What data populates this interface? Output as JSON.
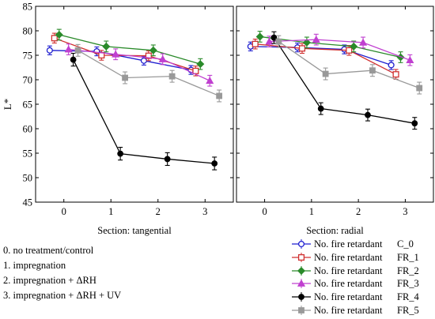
{
  "chart_data": {
    "type": "line",
    "ylabel": "L*",
    "ylim": [
      45,
      85
    ],
    "yticks": [
      45,
      50,
      55,
      60,
      65,
      70,
      75,
      80,
      85
    ],
    "x_ticks": [
      "0",
      "1",
      "2",
      "3"
    ],
    "xlim": [
      -0.6,
      3.6
    ],
    "series_meta": [
      {
        "name": "C_0",
        "legend_label": "No. fire retardant",
        "color": "#1f1fd0",
        "marker": "circle-open",
        "offset": -0.3
      },
      {
        "name": "FR_1",
        "legend_label": "No. fire retardant",
        "color": "#d03030",
        "marker": "square-open",
        "offset": -0.2
      },
      {
        "name": "FR_2",
        "legend_label": "No. fire retardant",
        "color": "#2a8a2a",
        "marker": "diamond",
        "offset": -0.1
      },
      {
        "name": "FR_3",
        "legend_label": "No. fire retardant",
        "color": "#c040d0",
        "marker": "triangle",
        "offset": 0.1
      },
      {
        "name": "FR_4",
        "legend_label": "No. fire retardant",
        "color": "#000000",
        "marker": "circle",
        "offset": 0.2
      },
      {
        "name": "FR_5",
        "legend_label": "No. fire retardant",
        "color": "#999999",
        "marker": "square",
        "offset": 0.3
      }
    ],
    "panels": [
      {
        "title": "Section: tangential",
        "series": [
          {
            "values": [
              76.0,
              75.8,
              73.9,
              72.0
            ],
            "err": [
              0.9,
              0.9,
              0.9,
              0.9
            ]
          },
          {
            "values": [
              78.5,
              75.0,
              74.9,
              71.8
            ],
            "err": [
              1.0,
              1.0,
              1.0,
              1.0
            ]
          },
          {
            "values": [
              79.2,
              76.8,
              76.0,
              73.2
            ],
            "err": [
              1.1,
              1.1,
              1.1,
              1.1
            ]
          },
          {
            "values": [
              76.2,
              75.2,
              74.2,
              69.8
            ],
            "err": [
              1.1,
              1.1,
              1.1,
              1.1
            ]
          },
          {
            "values": [
              74.1,
              54.9,
              53.8,
              52.9
            ],
            "err": [
              1.3,
              1.3,
              1.3,
              1.3
            ]
          },
          {
            "values": [
              76.0,
              70.4,
              70.7,
              66.7
            ],
            "err": [
              1.2,
              1.2,
              1.2,
              1.2
            ]
          }
        ]
      },
      {
        "title": "Section: radial",
        "series": [
          {
            "values": [
              76.8,
              76.6,
              76.2,
              73.0
            ],
            "err": [
              0.9,
              0.9,
              0.9,
              0.9
            ]
          },
          {
            "values": [
              77.3,
              76.4,
              76.0,
              71.1
            ],
            "err": [
              1.0,
              1.0,
              1.0,
              1.0
            ]
          },
          {
            "values": [
              78.8,
              77.6,
              76.8,
              74.6
            ],
            "err": [
              1.1,
              1.1,
              1.1,
              1.1
            ]
          },
          {
            "values": [
              77.8,
              78.2,
              77.6,
              74.0
            ],
            "err": [
              1.1,
              1.1,
              1.1,
              1.1
            ]
          },
          {
            "values": [
              78.6,
              64.1,
              62.8,
              61.1
            ],
            "err": [
              1.2,
              1.2,
              1.2,
              1.2
            ]
          },
          {
            "values": [
              77.8,
              71.2,
              71.9,
              68.3
            ],
            "err": [
              1.2,
              1.2,
              1.2,
              1.2
            ]
          }
        ]
      }
    ]
  },
  "notes": [
    "0. no treatment/control",
    "1. impregnation",
    "2. impregnation + ΔRH",
    "3. impregnation + ΔRH + UV"
  ]
}
